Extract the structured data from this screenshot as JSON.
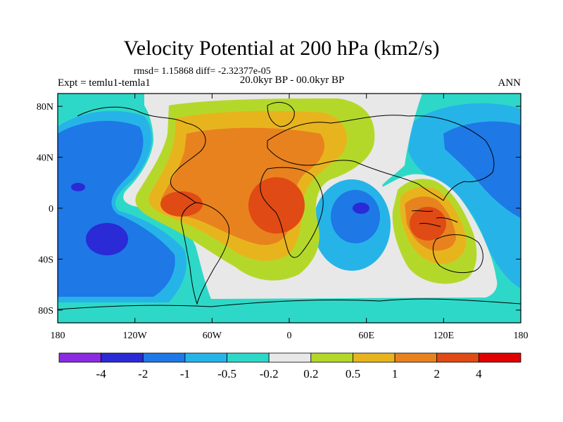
{
  "title": "Velocity Potential at 200 hPa (km2/s)",
  "stats": "rmsd= 1.15868 diff= -2.32377e-05",
  "experiment": "Expt = temlu1-temla1",
  "period": "20.0kyr BP - 00.0kyr BP",
  "season": "ANN",
  "axes": {
    "x_ticks": [
      {
        "label": "180",
        "lon": -180
      },
      {
        "label": "120W",
        "lon": -120
      },
      {
        "label": "60W",
        "lon": -60
      },
      {
        "label": "0",
        "lon": 0
      },
      {
        "label": "60E",
        "lon": 60
      },
      {
        "label": "120E",
        "lon": 120
      },
      {
        "label": "180",
        "lon": 180
      }
    ],
    "y_ticks": [
      {
        "label": "80N",
        "lat": 80
      },
      {
        "label": "40N",
        "lat": 40
      },
      {
        "label": "0",
        "lat": 0
      },
      {
        "label": "40S",
        "lat": -40
      },
      {
        "label": "80S",
        "lat": -80
      }
    ],
    "lon_range": [
      -180,
      180
    ],
    "lat_range": [
      -90,
      90
    ]
  },
  "colorbar": {
    "colors": [
      "#8a2be2",
      "#2a2ad6",
      "#1e78e6",
      "#26b4e8",
      "#2ed8c8",
      "#e8e8e8",
      "#b4d82a",
      "#e8b41e",
      "#e8821e",
      "#e04a14",
      "#e00000"
    ],
    "labels": [
      "-4",
      "-2",
      "-1",
      "-0.5",
      "-0.2",
      "0.2",
      "0.5",
      "1",
      "2",
      "4"
    ]
  },
  "field_colors": {
    "background": "#2ed8c8",
    "neutral": "#e8e8e8",
    "neg1": "#26b4e8",
    "neg2": "#1e78e6",
    "neg3": "#2a2ad6",
    "pos1": "#b4d82a",
    "pos2": "#e8b41e",
    "pos3": "#e8821e",
    "pos4": "#e04a14"
  }
}
